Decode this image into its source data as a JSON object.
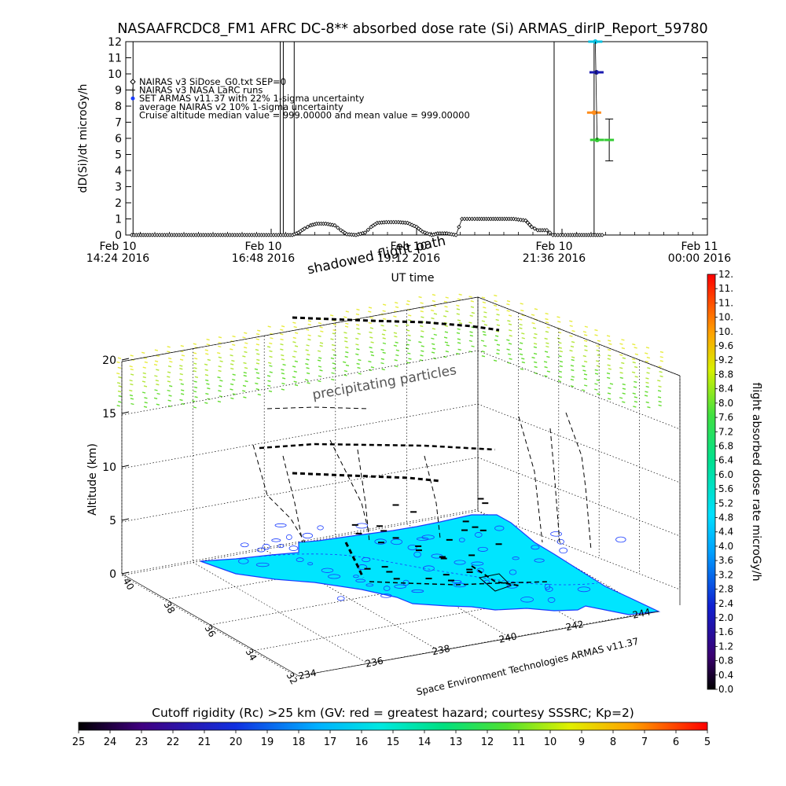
{
  "title": "NASAAFRCDC8_FM1 AFRC DC-8** absorbed dose rate (Si) ARMAS_dirIP_Report_59780",
  "chart_data": [
    {
      "type": "scatter",
      "ylabel": "dD(Si)/dt microGy/h",
      "xlabel": "UT time",
      "ylim": [
        0,
        12
      ],
      "y_ticks": [
        "0",
        "1",
        "2",
        "3",
        "4",
        "5",
        "6",
        "7",
        "8",
        "9",
        "10",
        "11",
        "12"
      ],
      "x_ticks": [
        {
          "line1": "Feb 10",
          "line2": "14:24 2016",
          "hour": 14.4
        },
        {
          "line1": "Feb 10",
          "line2": "16:48 2016",
          "hour": 16.8
        },
        {
          "line1": "Feb 10",
          "line2": "19:12 2016",
          "hour": 19.2
        },
        {
          "line1": "Feb 10",
          "line2": "21:36 2016",
          "hour": 21.6
        },
        {
          "line1": "Feb 11",
          "line2": "00:00 2016",
          "hour": 24.0
        }
      ],
      "xlim_hours": [
        14.4,
        24.0
      ],
      "legend": [
        "NAIRAS v3 SiDose_G0.txt SEP=0",
        "NAIRAS v3 NASA LaRC runs",
        "SET ARMAS v11.37 with 22% 1-sigma uncertainty",
        "average NAIRAS v2 10% 1-sigma uncertainty",
        "Cruise altitude median value = 999.00000 and mean value = 999.00000"
      ],
      "vertical_lines_hours": [
        14.52,
        16.95,
        17.0,
        17.18,
        21.47,
        22.13
      ],
      "series": [
        {
          "name": "NAIRAS v3 SiDose_G0.txt SEP=0",
          "points": [
            [
              14.5,
              0
            ],
            [
              14.8,
              0
            ],
            [
              15.2,
              0
            ],
            [
              15.6,
              0
            ],
            [
              16.0,
              0
            ],
            [
              16.4,
              0
            ],
            [
              16.8,
              0
            ],
            [
              17.0,
              0
            ],
            [
              17.15,
              0
            ],
            [
              17.25,
              0.15
            ],
            [
              17.35,
              0.4
            ],
            [
              17.45,
              0.6
            ],
            [
              17.55,
              0.7
            ],
            [
              17.7,
              0.7
            ],
            [
              17.85,
              0.6
            ],
            [
              17.95,
              0.3
            ],
            [
              18.05,
              0.05
            ],
            [
              18.2,
              0
            ],
            [
              18.35,
              0.15
            ],
            [
              18.45,
              0.5
            ],
            [
              18.55,
              0.75
            ],
            [
              18.7,
              0.8
            ],
            [
              18.9,
              0.8
            ],
            [
              19.05,
              0.75
            ],
            [
              19.2,
              0.5
            ],
            [
              19.3,
              0.2
            ],
            [
              19.45,
              0
            ],
            [
              19.55,
              0.1
            ],
            [
              19.7,
              0.1
            ],
            [
              19.85,
              0
            ],
            [
              19.95,
              1.0
            ],
            [
              20.2,
              1.0
            ],
            [
              20.5,
              1.0
            ],
            [
              20.8,
              1.0
            ],
            [
              21.0,
              0.9
            ],
            [
              21.1,
              0.5
            ],
            [
              21.2,
              0.3
            ],
            [
              21.35,
              0.3
            ],
            [
              21.45,
              0
            ],
            [
              21.7,
              0
            ],
            [
              22.0,
              0
            ],
            [
              22.3,
              0
            ]
          ]
        },
        {
          "name": "SET ARMAS v11.37 with 22% 1-sigma uncertainty",
          "points": [
            [
              22.15,
              12.0
            ],
            [
              22.17,
              10.1
            ],
            [
              22.13,
              7.6
            ],
            [
              22.18,
              5.9
            ]
          ],
          "colors": [
            "#00c0e0",
            "#1a1ab0",
            "#ff8c1a",
            "#33cc33"
          ]
        },
        {
          "name": "average NAIRAS v2 10% 1-sigma uncertainty",
          "points": [
            [
              22.38,
              5.9
            ]
          ],
          "error": [
            4.6,
            7.2
          ]
        }
      ]
    },
    {
      "type": "surface",
      "ylabel": "Altitude (km)",
      "z_ticks": [
        "0",
        "5",
        "10",
        "15",
        "20"
      ],
      "lat_ticks": [
        "40",
        "38",
        "36",
        "34",
        "32"
      ],
      "lon_ticks": [
        "234",
        "236",
        "238",
        "240",
        "242",
        "244"
      ],
      "annotations": [
        "shadowed flight path",
        "precipitating particles"
      ],
      "credit": "Space Environment Technologies ARMAS v11.37",
      "colorbar": {
        "label": "flight absorbed dose rate microGy/h",
        "ticks": [
          "0.0",
          "0.4",
          "0.8",
          "1.2",
          "1.6",
          "2.0",
          "2.4",
          "2.8",
          "3.2",
          "3.6",
          "4.0",
          "4.4",
          "4.8",
          "5.2",
          "5.6",
          "6.0",
          "6.4",
          "6.8",
          "7.2",
          "7.6",
          "8.0",
          "8.4",
          "8.8",
          "9.2",
          "9.6",
          "10.",
          "10.",
          "11.",
          "11.",
          "12."
        ]
      }
    },
    {
      "type": "colorbar",
      "title": "Cutoff rigidity (Rc) >25 km (GV: red = greatest hazard; courtesy SSSRC; Kp=2)",
      "ticks": [
        "25",
        "24",
        "23",
        "22",
        "21",
        "20",
        "19",
        "18",
        "17",
        "16",
        "15",
        "14",
        "13",
        "12",
        "11",
        "10",
        "9",
        "8",
        "7",
        "6",
        "5"
      ]
    }
  ],
  "colors": {
    "surface_fill": "#00e5ff",
    "contour": "#1a3cff",
    "particles": "#9ee84a",
    "armas_top": "#00c0e0",
    "armas_blue": "#1a1ab0",
    "armas_orange": "#ff8c1a",
    "armas_green": "#33cc33"
  }
}
